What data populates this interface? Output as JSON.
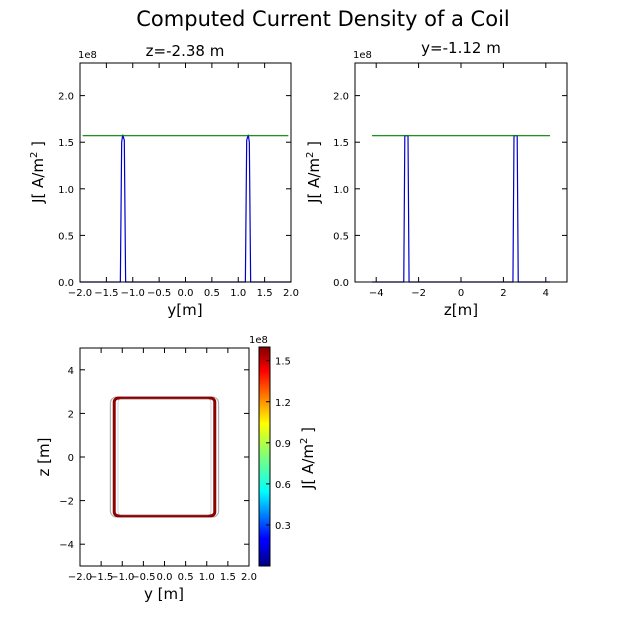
{
  "figure": {
    "title": "Computed Current Density of a Coil"
  },
  "chart_data": [
    {
      "type": "line",
      "title": "z=-2.38 m",
      "xlabel": "y[m]",
      "ylabel": "J[ A/m² ]",
      "ylabel_base": "J[ A/m",
      "ylabel_sup": "2",
      "ylabel_end": " ]",
      "xlim": [
        -2.0,
        2.0
      ],
      "ylim": [
        0,
        235000000
      ],
      "scale_label": "1e8",
      "xticks": [
        -2.0,
        -1.5,
        -1.0,
        -0.5,
        0.0,
        0.5,
        1.0,
        1.5,
        2.0
      ],
      "xtick_labels": [
        "−2.0",
        "−1.5",
        "−1.0",
        "−0.5",
        "0.0",
        "0.5",
        "1.0",
        "1.5",
        "2.0"
      ],
      "yticks": [
        0,
        50000000,
        100000000,
        150000000,
        200000000
      ],
      "ytick_labels": [
        "0.0",
        "0.5",
        "1.0",
        "1.5",
        "2.0"
      ],
      "series": [
        {
          "color": "#0000cc",
          "x": [
            -2.0,
            -1.28,
            -1.235,
            -1.21,
            -1.19,
            -1.16,
            -1.135,
            -1.09,
            1.09,
            1.135,
            1.16,
            1.19,
            1.21,
            1.235,
            1.28,
            2.0
          ],
          "y": [
            0,
            0,
            0,
            150000000,
            158000000,
            152000000,
            0,
            0,
            0,
            0,
            152000000,
            158000000,
            150000000,
            0,
            0,
            0
          ]
        },
        {
          "color": "#008000",
          "x": [
            -1.95,
            1.95
          ],
          "y": [
            157000000,
            157000000
          ]
        }
      ]
    },
    {
      "type": "line",
      "title": "y=-1.12 m",
      "xlabel": "z[m]",
      "ylabel": "J[ A/m² ]",
      "ylabel_base": "J[ A/m",
      "ylabel_sup": "2",
      "ylabel_end": " ]",
      "xlim": [
        -5,
        5
      ],
      "ylim": [
        0,
        235000000
      ],
      "scale_label": "1e8",
      "xticks": [
        -4,
        -2,
        0,
        2,
        4
      ],
      "xtick_labels": [
        "−4",
        "−2",
        "0",
        "2",
        "4"
      ],
      "yticks": [
        0,
        50000000,
        100000000,
        150000000,
        200000000
      ],
      "ytick_labels": [
        "0.0",
        "0.5",
        "1.0",
        "1.5",
        "2.0"
      ],
      "series": [
        {
          "color": "#0000cc",
          "x": [
            -4.2,
            -2.7,
            -2.65,
            -2.5,
            -2.45,
            2.45,
            2.5,
            2.65,
            2.7,
            4.2
          ],
          "y": [
            0,
            0,
            157000000,
            157000000,
            0,
            0,
            157000000,
            157000000,
            0,
            0
          ]
        },
        {
          "color": "#008000",
          "x": [
            -4.2,
            4.2
          ],
          "y": [
            157000000,
            157000000
          ]
        }
      ]
    },
    {
      "type": "heatmap",
      "xlabel": "y [m]",
      "ylabel": "z [m]",
      "xlim": [
        -2.0,
        2.0
      ],
      "ylim": [
        -5,
        5
      ],
      "xticks": [
        -2.0,
        -1.5,
        -1.0,
        -0.5,
        0.0,
        0.5,
        1.0,
        1.5,
        2.0
      ],
      "xtick_labels": [
        "−2.0",
        "−1.5",
        "−1.0",
        "−0.5",
        "0.0",
        "0.5",
        "1.0",
        "1.5",
        "2.0"
      ],
      "yticks": [
        -4,
        -2,
        0,
        2,
        4
      ],
      "ytick_labels": [
        "−4",
        "−2",
        "0",
        "2",
        "4"
      ],
      "coil": {
        "y_outer": 1.28,
        "y_inner": 1.1,
        "z_outer": 2.75,
        "z_inner": 2.65,
        "value": 157000000
      },
      "colorbar": {
        "label": "J[ A/m² ]",
        "label_base": "J[ A/m",
        "label_sup": "2",
        "label_end": " ]",
        "scale_label": "1e8",
        "range": [
          0,
          160000000
        ],
        "ticks": [
          30000000,
          60000000,
          90000000,
          120000000,
          150000000
        ],
        "tick_labels": [
          "0.3",
          "0.6",
          "0.9",
          "1.2",
          "1.5"
        ]
      }
    }
  ]
}
